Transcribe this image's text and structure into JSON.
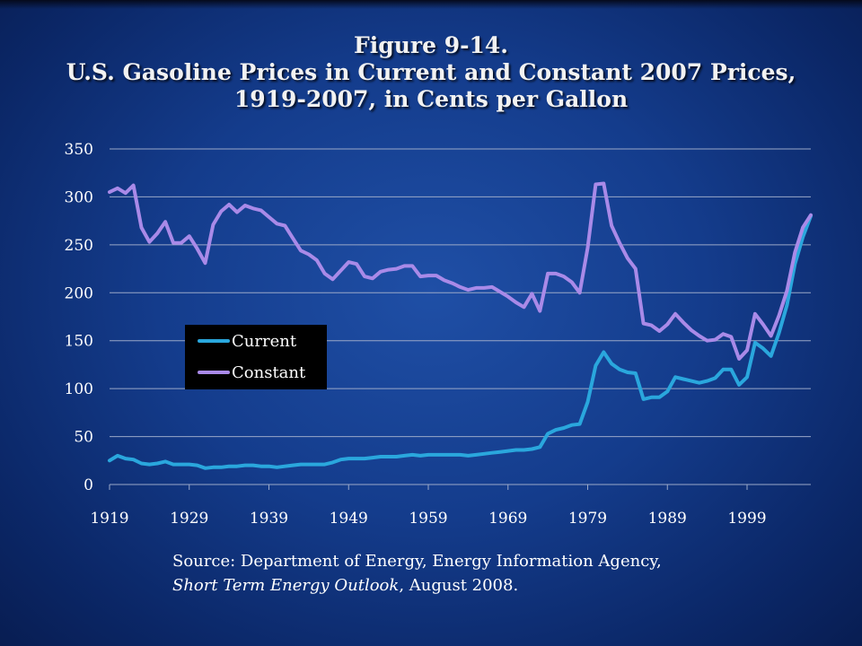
{
  "title": {
    "line1": "Figure 9-14.",
    "line2": "U.S. Gasoline Prices in Current and Constant 2007 Prices,",
    "line3": "1919-2007, in Cents per Gallon"
  },
  "source": {
    "line1": "Source: Department of Energy, Energy Information Agency,",
    "line2_italic": "Short Term Energy Outlook",
    "line2_rest": ", August 2008."
  },
  "chart_data": {
    "type": "line",
    "title": "U.S. Gasoline Prices in Current and Constant 2007 Prices, 1919-2007, in Cents per Gallon",
    "xlabel": "",
    "ylabel": "",
    "xlim": [
      1919,
      2007
    ],
    "ylim": [
      0,
      350
    ],
    "x_ticks": [
      1919,
      1929,
      1939,
      1949,
      1959,
      1969,
      1979,
      1989,
      1999
    ],
    "y_ticks": [
      0,
      50,
      100,
      150,
      200,
      250,
      300,
      350
    ],
    "grid": "horizontal",
    "legend": "inside-left",
    "x": [
      1919,
      1920,
      1921,
      1922,
      1923,
      1924,
      1925,
      1926,
      1927,
      1928,
      1929,
      1930,
      1931,
      1932,
      1933,
      1934,
      1935,
      1936,
      1937,
      1938,
      1939,
      1940,
      1941,
      1942,
      1943,
      1944,
      1945,
      1946,
      1947,
      1948,
      1949,
      1950,
      1951,
      1952,
      1953,
      1954,
      1955,
      1956,
      1957,
      1958,
      1959,
      1960,
      1961,
      1962,
      1963,
      1964,
      1965,
      1966,
      1967,
      1968,
      1969,
      1970,
      1971,
      1972,
      1973,
      1974,
      1975,
      1976,
      1977,
      1978,
      1979,
      1980,
      1981,
      1982,
      1983,
      1984,
      1985,
      1986,
      1987,
      1988,
      1989,
      1990,
      1991,
      1992,
      1993,
      1994,
      1995,
      1996,
      1997,
      1998,
      1999,
      2000,
      2001,
      2002,
      2003,
      2004,
      2005,
      2006,
      2007
    ],
    "series": [
      {
        "name": "Current",
        "color": "#2aa7dd",
        "values": [
          25,
          30,
          27,
          26,
          22,
          21,
          22,
          24,
          21,
          21,
          21,
          20,
          17,
          18,
          18,
          19,
          19,
          20,
          20,
          19,
          19,
          18,
          19,
          20,
          21,
          21,
          21,
          21,
          23,
          26,
          27,
          27,
          27,
          28,
          29,
          29,
          29,
          30,
          31,
          30,
          31,
          31,
          31,
          31,
          31,
          30,
          31,
          32,
          33,
          34,
          35,
          36,
          36,
          37,
          39,
          53,
          57,
          59,
          62,
          63,
          86,
          124,
          138,
          126,
          120,
          117,
          116,
          89,
          91,
          91,
          97,
          112,
          110,
          108,
          106,
          108,
          111,
          120,
          120,
          104,
          112,
          148,
          142,
          134,
          158,
          187,
          230,
          258,
          280
        ]
      },
      {
        "name": "Constant",
        "color": "#a98ae8",
        "values": [
          305,
          309,
          304,
          312,
          268,
          253,
          262,
          274,
          252,
          252,
          259,
          246,
          231,
          271,
          285,
          292,
          284,
          291,
          288,
          286,
          279,
          272,
          270,
          257,
          244,
          240,
          234,
          220,
          214,
          223,
          232,
          230,
          217,
          215,
          222,
          224,
          225,
          228,
          228,
          217,
          218,
          218,
          213,
          210,
          206,
          203,
          205,
          205,
          206,
          201,
          196,
          190,
          185,
          199,
          181,
          220,
          220,
          217,
          211,
          200,
          247,
          313,
          314,
          270,
          252,
          236,
          225,
          168,
          166,
          160,
          167,
          178,
          169,
          161,
          155,
          150,
          151,
          157,
          154,
          131,
          140,
          178,
          167,
          155,
          176,
          202,
          242,
          268,
          281
        ]
      }
    ]
  }
}
